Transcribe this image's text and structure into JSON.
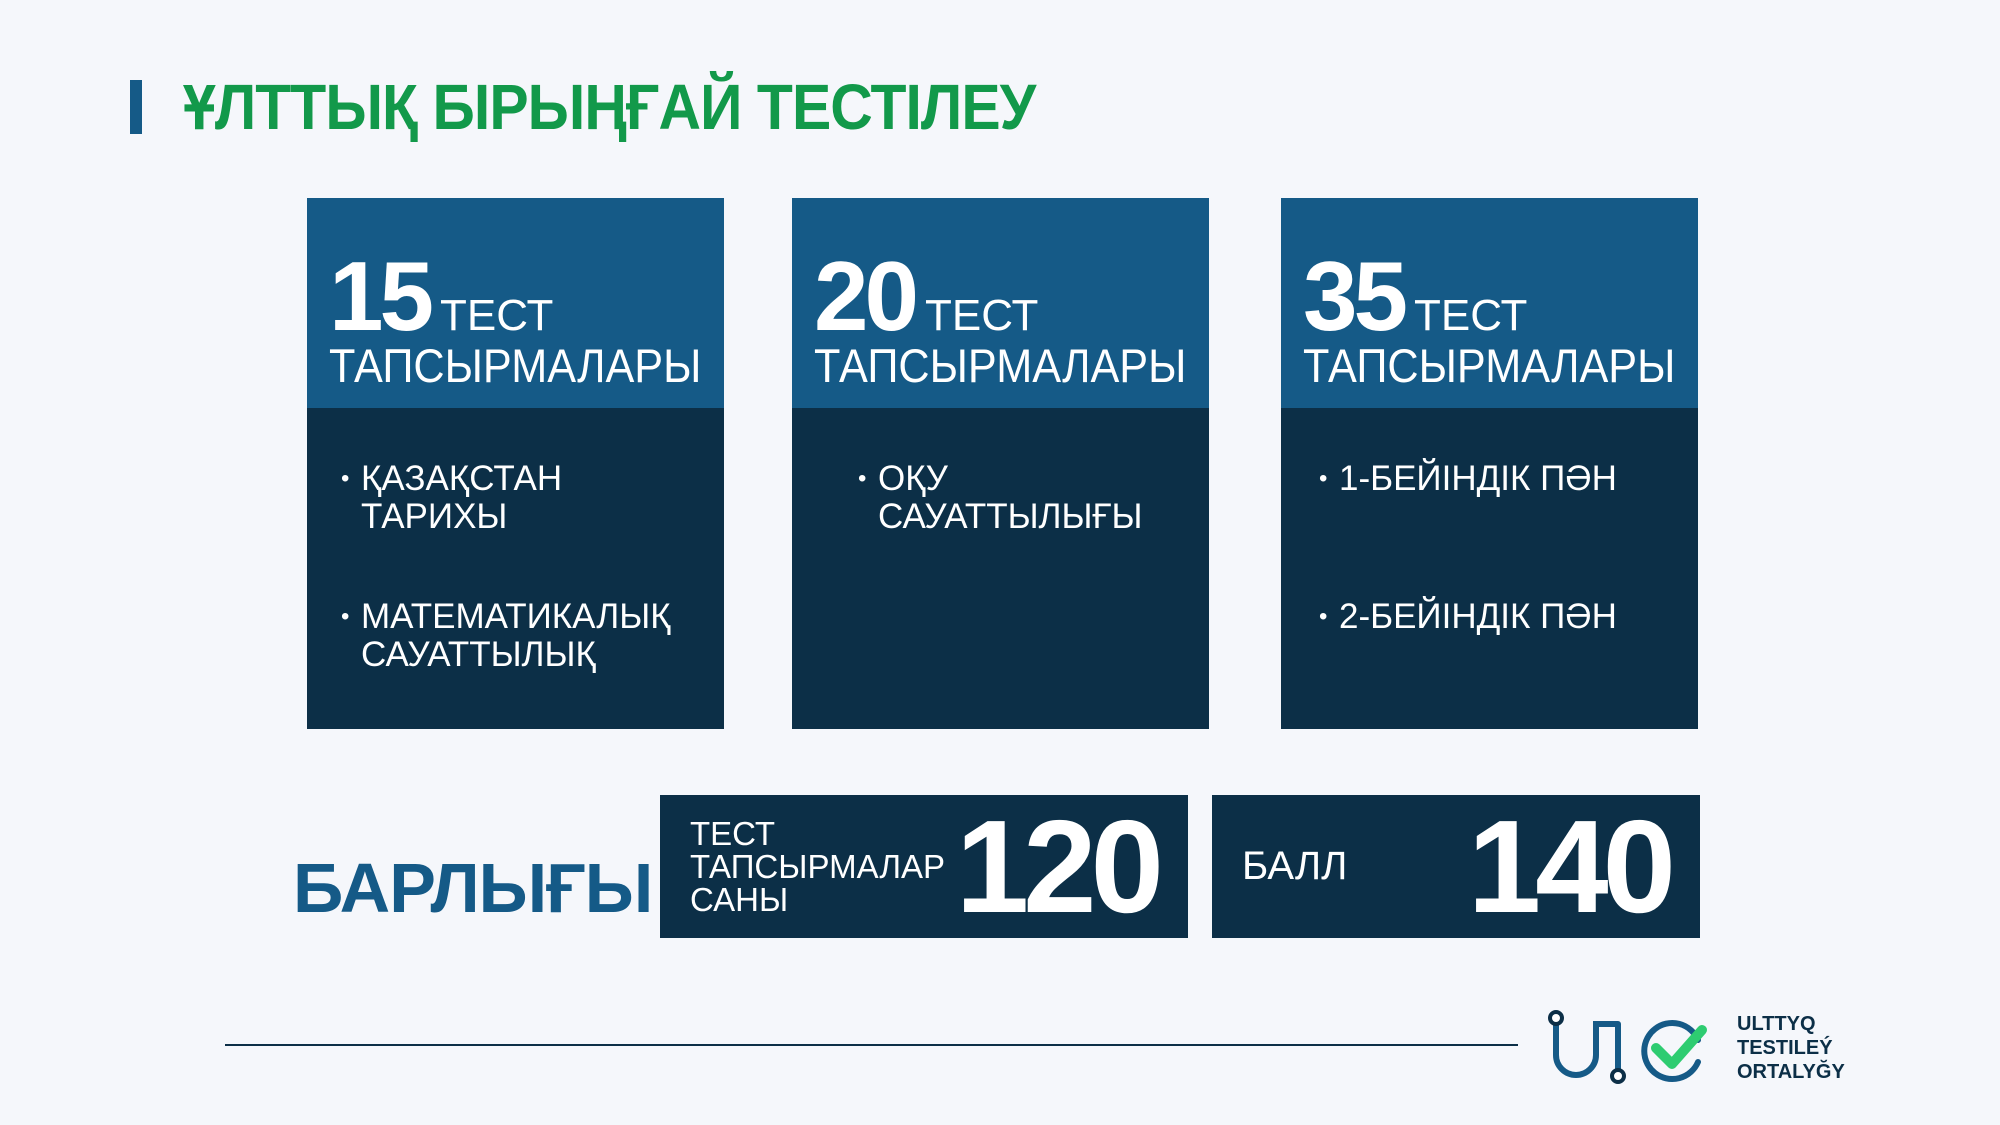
{
  "title": "ҰЛТТЫҚ БІРЫҢҒАЙ ТЕСТІЛЕУ",
  "colors": {
    "title": "#12994a",
    "card_header": "#155a87",
    "card_body": "#0c2f47",
    "logo_check": "#2ecc71"
  },
  "cards": [
    {
      "number": "15",
      "unit": "ТЕСТ",
      "subtitle": "ТАПСЫРМАЛАРЫ",
      "items": [
        "ҚАЗАҚСТАН\nТАРИХЫ",
        "МАТЕМАТИКАЛЫҚ\nСАУАТТЫЛЫҚ"
      ]
    },
    {
      "number": "20",
      "unit": "ТЕСТ",
      "subtitle": "ТАПСЫРМАЛАРЫ",
      "items": [
        "ОҚУ\nСАУАТТЫЛЫҒЫ"
      ]
    },
    {
      "number": "35",
      "unit": "ТЕСТ",
      "subtitle": "ТАПСЫРМАЛАРЫ",
      "items": [
        "1-БЕЙІНДІК ПӘН",
        "2-БЕЙІНДІК ПӘН"
      ]
    }
  ],
  "totals": {
    "label": "БАРЛЫҒЫ",
    "tasks_label": "ТЕСТ\nТАПСЫРМАЛАР\nСАНЫ",
    "tasks_value": "120",
    "score_label": "БАЛЛ",
    "score_value": "140"
  },
  "logo": {
    "mark": "UTO",
    "text": "ULTTYQ\nTESTILEÝ\nORTALYĞY"
  }
}
